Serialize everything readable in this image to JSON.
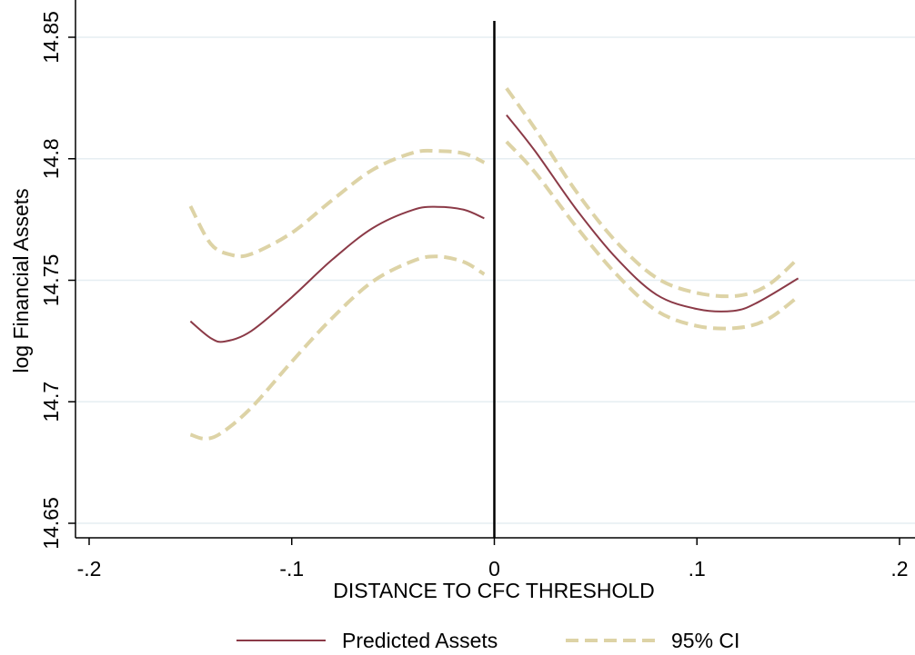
{
  "chart_data": {
    "type": "line",
    "xlabel": "DISTANCE TO CFC THRESHOLD",
    "ylabel": "log Financial Assets",
    "xlim": [
      -0.2,
      0.2
    ],
    "ylim": [
      14.65,
      14.85
    ],
    "x_ticks": [
      -0.2,
      -0.1,
      0,
      0.1,
      0.2
    ],
    "x_tick_labels": [
      "-.2",
      "-.1",
      "0",
      ".1",
      ".2"
    ],
    "y_ticks": [
      14.65,
      14.7,
      14.75,
      14.8,
      14.85
    ],
    "y_tick_labels": [
      "14.65",
      "14.7",
      "14.75",
      "14.8",
      "14.85"
    ],
    "grid": true,
    "legend_position": "bottom",
    "threshold_line_x": 0,
    "colors": {
      "predicted": "#8b3a47",
      "ci": "#ddd3a6",
      "grid": "#e6eef2",
      "threshold": "#000000"
    },
    "series": [
      {
        "name": "Predicted Assets",
        "style": "solid",
        "segments": [
          {
            "x": [
              -0.15,
              -0.14,
              -0.133,
              -0.12,
              -0.1,
              -0.08,
              -0.06,
              -0.04,
              -0.028,
              -0.015,
              -0.005
            ],
            "y": [
              14.7331,
              14.7262,
              14.7248,
              14.7291,
              14.743,
              14.7585,
              14.7715,
              14.779,
              14.7802,
              14.779,
              14.7755
            ]
          },
          {
            "x": [
              0.006,
              0.02,
              0.04,
              0.06,
              0.08,
              0.1,
              0.118,
              0.13,
              0.15
            ],
            "y": [
              14.818,
              14.8033,
              14.7797,
              14.7593,
              14.7441,
              14.7382,
              14.7374,
              14.7409,
              14.7508
            ]
          }
        ]
      },
      {
        "name": "95% CI",
        "style": "dashed",
        "segments": [
          {
            "x": [
              -0.15,
              -0.14,
              -0.13,
              -0.12,
              -0.1,
              -0.08,
              -0.06,
              -0.04,
              -0.028,
              -0.015,
              -0.005
            ],
            "y": [
              14.7805,
              14.765,
              14.7605,
              14.7608,
              14.7695,
              14.783,
              14.7955,
              14.8025,
              14.8032,
              14.8022,
              14.7985
            ]
          },
          {
            "x": [
              -0.15,
              -0.143,
              -0.135,
              -0.12,
              -0.1,
              -0.08,
              -0.06,
              -0.04,
              -0.028,
              -0.015,
              -0.005
            ],
            "y": [
              14.6865,
              14.6848,
              14.687,
              14.6975,
              14.7165,
              14.7345,
              14.7495,
              14.758,
              14.7598,
              14.7575,
              14.7525
            ]
          },
          {
            "x": [
              0.006,
              0.02,
              0.04,
              0.06,
              0.08,
              0.1,
              0.12,
              0.135,
              0.15
            ],
            "y": [
              14.829,
              14.8125,
              14.787,
              14.766,
              14.751,
              14.7448,
              14.7436,
              14.748,
              14.759
            ]
          },
          {
            "x": [
              0.006,
              0.02,
              0.04,
              0.06,
              0.08,
              0.1,
              0.12,
              0.135,
              0.15
            ],
            "y": [
              14.807,
              14.7945,
              14.7725,
              14.7527,
              14.7375,
              14.7312,
              14.7304,
              14.734,
              14.7433
            ]
          }
        ]
      }
    ]
  }
}
